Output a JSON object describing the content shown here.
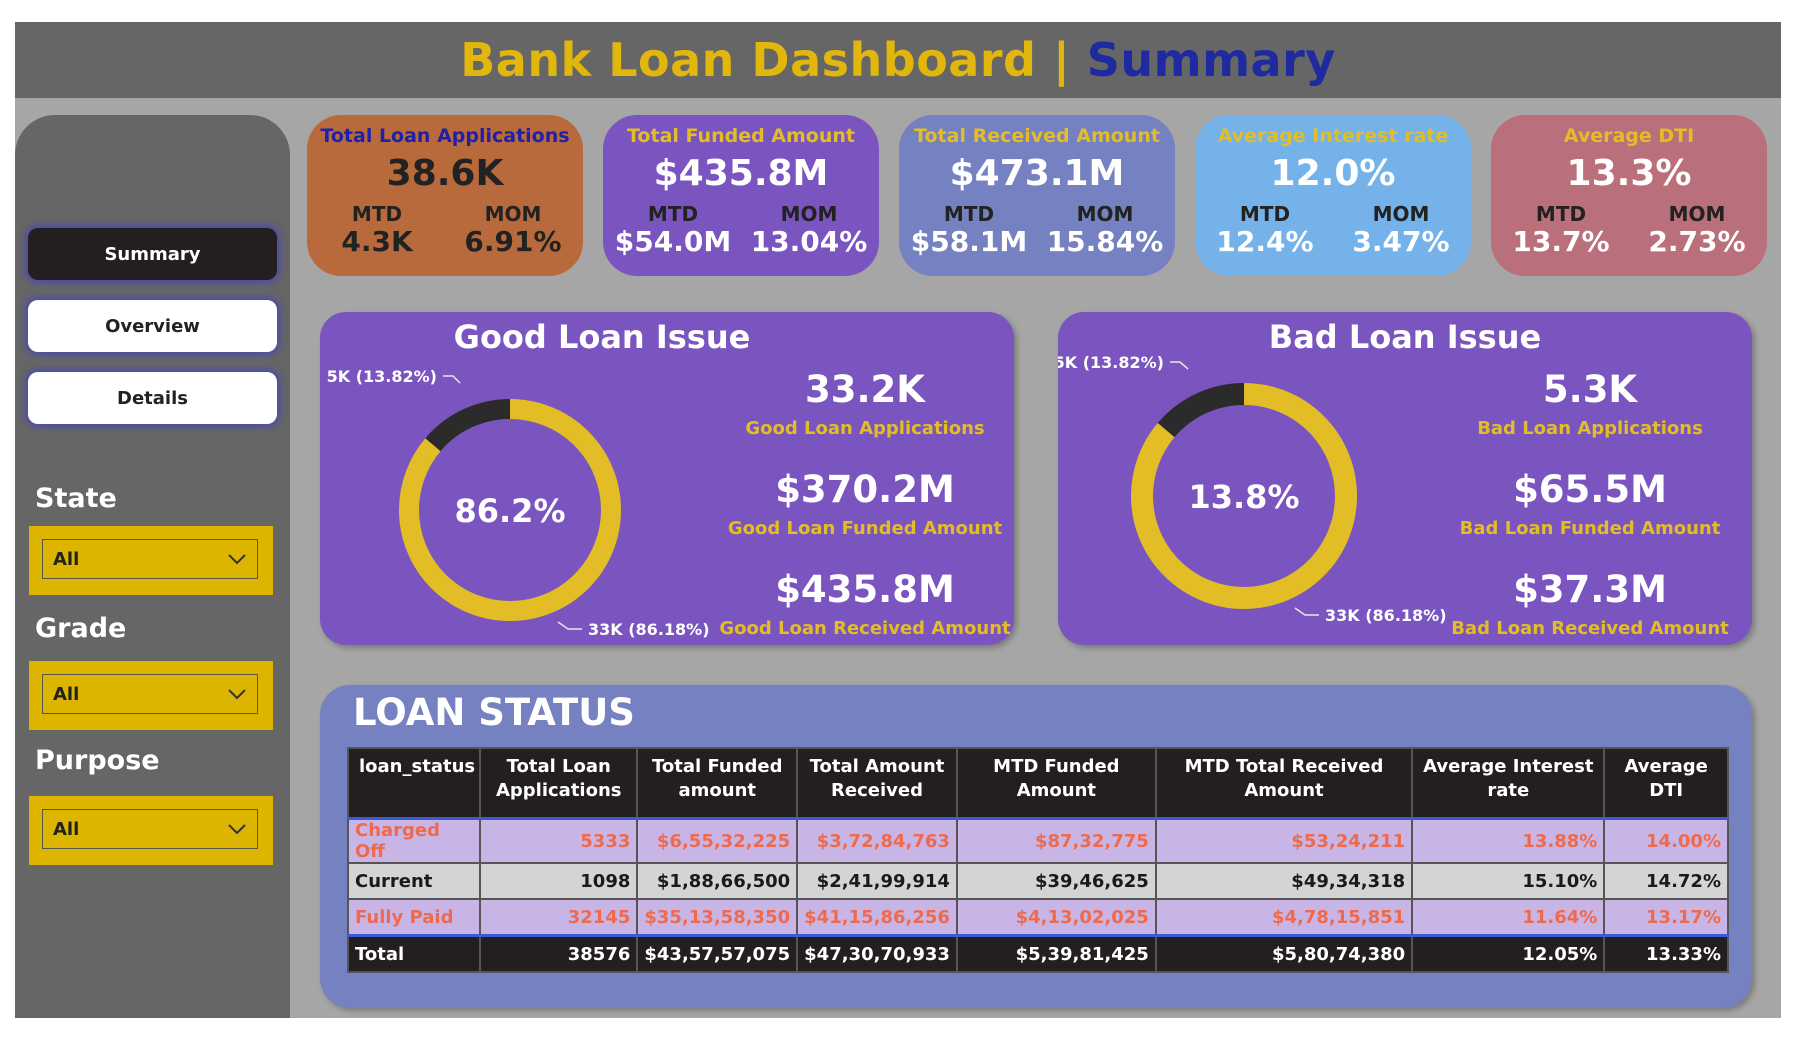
{
  "header": {
    "title_part1": "Bank Loan Dashboard |",
    "title_part2": "Summary",
    "color_part1": "#e2b70d",
    "color_part2": "#1f2aa0"
  },
  "sidebar": {
    "nav": [
      {
        "label": "Summary",
        "active": true
      },
      {
        "label": "Overview",
        "active": false
      },
      {
        "label": "Details",
        "active": false
      }
    ],
    "filters": [
      {
        "title": "State",
        "value": "All"
      },
      {
        "title": "Grade",
        "value": "All"
      },
      {
        "title": "Purpose",
        "value": "All"
      }
    ]
  },
  "kpis": [
    {
      "title": "Total Loan Applications",
      "value": "38.6K",
      "mtd_label": "MTD",
      "mtd": "4.3K",
      "mom_label": "MOM",
      "mom": "6.91%",
      "bg": "#b96a3c",
      "title_color": "#2020a8"
    },
    {
      "title": "Total Funded Amount",
      "value": "$435.8M",
      "mtd_label": "MTD",
      "mtd": "$54.0M",
      "mom_label": "MOM",
      "mom": "13.04%",
      "bg": "#7b55bf",
      "title_color": "#e2bd26"
    },
    {
      "title": "Total Received Amount",
      "value": "$473.1M",
      "mtd_label": "MTD",
      "mtd": "$58.1M",
      "mom_label": "MOM",
      "mom": "15.84%",
      "bg": "#7581c0",
      "title_color": "#e2bd26"
    },
    {
      "title": "Average Interest rate",
      "value": "12.0%",
      "mtd_label": "MTD",
      "mtd": "12.4%",
      "mom_label": "MOM",
      "mom": "3.47%",
      "bg": "#76b2ea",
      "title_color": "#e2bd26"
    },
    {
      "title": "Average DTI",
      "value": "13.3%",
      "mtd_label": "MTD",
      "mtd": "13.7%",
      "mom_label": "MOM",
      "mom": "2.73%",
      "bg": "#b9707a",
      "title_color": "#e2bd26"
    }
  ],
  "good_loan": {
    "title": "Good Loan Issue",
    "applications": "33.2K",
    "applications_label": "Good Loan Applications",
    "funded": "$370.2M",
    "funded_label": "Good Loan Funded Amount",
    "received": "$435.8M",
    "received_label": "Good Loan Received Amount"
  },
  "bad_loan": {
    "title": "Bad Loan Issue",
    "applications": "5.3K",
    "applications_label": "Bad Loan Applications",
    "funded": "$65.5M",
    "funded_label": "Bad Loan Funded Amount",
    "received": "$37.3M",
    "received_label": "Bad Loan Received Amount"
  },
  "chart_data": [
    {
      "type": "pie",
      "variant": "donut",
      "center_label": "86.2%",
      "slices": [
        {
          "value": 86.18,
          "label": "33K (86.18%)",
          "color": "#e2bd26"
        },
        {
          "value": 13.82,
          "label": "5K (13.82%)",
          "color": "#2b2b2b"
        }
      ]
    },
    {
      "type": "pie",
      "variant": "donut",
      "center_label": "13.8%",
      "slices": [
        {
          "value": 86.18,
          "label": "33K (86.18%)",
          "color": "#e2bd26"
        },
        {
          "value": 13.82,
          "label": "5K (13.82%)",
          "color": "#2b2b2b"
        }
      ]
    },
    {
      "type": "table",
      "title": "LOAN STATUS",
      "columns": [
        "loan_status",
        "Total Loan Applications",
        "Total Funded amount",
        "Total Amount Received",
        "MTD Funded Amount",
        "MTD Total Received Amount",
        "Average Interest rate",
        "Average DTI"
      ],
      "rows": [
        [
          "Charged Off",
          "5333",
          "$6,55,32,225",
          "$3,72,84,763",
          "$87,32,775",
          "$53,24,211",
          "13.88%",
          "14.00%"
        ],
        [
          "Current",
          "1098",
          "$1,88,66,500",
          "$2,41,99,914",
          "$39,46,625",
          "$49,34,318",
          "15.10%",
          "14.72%"
        ],
        [
          "Fully Paid",
          "32145",
          "$35,13,58,350",
          "$41,15,86,256",
          "$4,13,02,025",
          "$4,78,15,851",
          "11.64%",
          "13.17%"
        ],
        [
          "Total",
          "38576",
          "$43,57,57,075",
          "$47,30,70,933",
          "$5,39,81,425",
          "$5,80,74,380",
          "12.05%",
          "13.33%"
        ]
      ]
    }
  ]
}
